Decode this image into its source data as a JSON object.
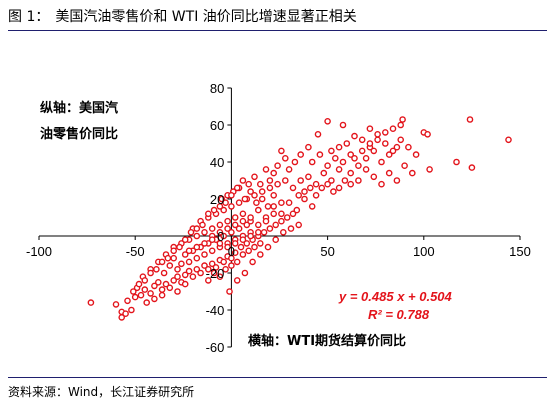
{
  "figure": {
    "title_prefix": "图 1：",
    "title": "美国汽油零售价和 WTI 油价同比增速显著正相关",
    "source": "资料来源：Wind，长江证券研究所"
  },
  "chart_data": {
    "type": "scatter",
    "ylabel_lines": [
      "纵轴：美国汽",
      "油零售价同比"
    ],
    "xlabel": "横轴：WTI期货结算价同比",
    "xlim": [
      -100,
      150
    ],
    "ylim": [
      -60,
      80
    ],
    "xticks": [
      "-100",
      "-50",
      "0",
      "50",
      "100",
      "150"
    ],
    "yticks": [
      "-60",
      "-40",
      "-20",
      "0",
      "20",
      "40",
      "60",
      "80"
    ],
    "xtick_values": [
      -100,
      -50,
      0,
      50,
      100,
      150
    ],
    "ytick_values": [
      -60,
      -40,
      -20,
      0,
      20,
      40,
      60,
      80
    ],
    "trendline": {
      "slope": 0.485,
      "intercept": 0.504
    },
    "equation": "y = 0.485 x + 0.504",
    "r_squared_label": "R² = 0.788",
    "marker_color": "#e3141b",
    "series": [
      {
        "points": [
          [
            -73,
            -36
          ],
          [
            -60,
            -37
          ],
          [
            -57,
            -41
          ],
          [
            -55,
            -42
          ],
          [
            -57,
            -44
          ],
          [
            -52,
            -40
          ],
          [
            -54,
            -35
          ],
          [
            -50,
            -33
          ],
          [
            -47,
            -32
          ],
          [
            -44,
            -36
          ],
          [
            -49,
            -28
          ],
          [
            -45,
            -29
          ],
          [
            -42,
            -31
          ],
          [
            -40,
            -27
          ],
          [
            -38,
            -25
          ],
          [
            -36,
            -29
          ],
          [
            -34,
            -26
          ],
          [
            -30,
            -24
          ],
          [
            -28,
            -22
          ],
          [
            -26,
            -25
          ],
          [
            -24,
            -21
          ],
          [
            -22,
            -19
          ],
          [
            -20,
            -22
          ],
          [
            -18,
            -18
          ],
          [
            -16,
            -20
          ],
          [
            -14,
            -16
          ],
          [
            -12,
            -18
          ],
          [
            -10,
            -15
          ],
          [
            -8,
            -17
          ],
          [
            -6,
            -13
          ],
          [
            -4,
            -14
          ],
          [
            -2,
            -11
          ],
          [
            0,
            -12
          ],
          [
            2,
            -9
          ],
          [
            -46,
            -22
          ],
          [
            -42,
            -18
          ],
          [
            -38,
            -14
          ],
          [
            -35,
            -20
          ],
          [
            -32,
            -16
          ],
          [
            -30,
            -12
          ],
          [
            -28,
            -18
          ],
          [
            -26,
            -15
          ],
          [
            -24,
            -10
          ],
          [
            -22,
            -14
          ],
          [
            -20,
            -8
          ],
          [
            -18,
            -12
          ],
          [
            -16,
            -6
          ],
          [
            -14,
            -10
          ],
          [
            -12,
            -4
          ],
          [
            -10,
            -8
          ],
          [
            -8,
            -2
          ],
          [
            -6,
            -6
          ],
          [
            -4,
            0
          ],
          [
            -2,
            -4
          ],
          [
            0,
            2
          ],
          [
            2,
            -2
          ],
          [
            4,
            4
          ],
          [
            6,
            0
          ],
          [
            8,
            6
          ],
          [
            10,
            2
          ],
          [
            -34,
            -10
          ],
          [
            -30,
            -6
          ],
          [
            -26,
            -4
          ],
          [
            -22,
            -2
          ],
          [
            -18,
            0
          ],
          [
            -14,
            2
          ],
          [
            -10,
            4
          ],
          [
            -6,
            6
          ],
          [
            -2,
            8
          ],
          [
            2,
            10
          ],
          [
            6,
            12
          ],
          [
            10,
            8
          ],
          [
            14,
            14
          ],
          [
            18,
            10
          ],
          [
            22,
            16
          ],
          [
            26,
            12
          ],
          [
            30,
            18
          ],
          [
            34,
            14
          ],
          [
            38,
            20
          ],
          [
            42,
            16
          ],
          [
            -20,
            4
          ],
          [
            -16,
            8
          ],
          [
            -12,
            10
          ],
          [
            -8,
            12
          ],
          [
            -4,
            14
          ],
          [
            0,
            16
          ],
          [
            4,
            18
          ],
          [
            8,
            20
          ],
          [
            12,
            22
          ],
          [
            16,
            24
          ],
          [
            20,
            26
          ],
          [
            24,
            28
          ],
          [
            28,
            30
          ],
          [
            32,
            26
          ],
          [
            36,
            30
          ],
          [
            40,
            32
          ],
          [
            44,
            28
          ],
          [
            48,
            34
          ],
          [
            52,
            30
          ],
          [
            56,
            36
          ],
          [
            -5,
            20
          ],
          [
            -2,
            22
          ],
          [
            1,
            24
          ],
          [
            4,
            26
          ],
          [
            7,
            20
          ],
          [
            10,
            24
          ],
          [
            13,
            18
          ],
          [
            16,
            20
          ],
          [
            19,
            16
          ],
          [
            22,
            22
          ],
          [
            5,
            -6
          ],
          [
            8,
            -4
          ],
          [
            11,
            -2
          ],
          [
            14,
            0
          ],
          [
            17,
            2
          ],
          [
            20,
            4
          ],
          [
            23,
            6
          ],
          [
            26,
            8
          ],
          [
            29,
            10
          ],
          [
            32,
            12
          ],
          [
            -12,
            -24
          ],
          [
            -9,
            -20
          ],
          [
            -6,
            -22
          ],
          [
            -3,
            -18
          ],
          [
            0,
            -16
          ],
          [
            3,
            -14
          ],
          [
            6,
            -10
          ],
          [
            9,
            -8
          ],
          [
            12,
            -6
          ],
          [
            15,
            -4
          ],
          [
            50,
            38
          ],
          [
            54,
            42
          ],
          [
            58,
            40
          ],
          [
            62,
            44
          ],
          [
            66,
            38
          ],
          [
            70,
            42
          ],
          [
            74,
            46
          ],
          [
            78,
            40
          ],
          [
            82,
            44
          ],
          [
            86,
            48
          ],
          [
            60,
            50
          ],
          [
            64,
            54
          ],
          [
            68,
            52
          ],
          [
            72,
            48
          ],
          [
            76,
            52
          ],
          [
            80,
            50
          ],
          [
            84,
            46
          ],
          [
            88,
            52
          ],
          [
            92,
            48
          ],
          [
            96,
            44
          ],
          [
            58,
            60
          ],
          [
            62,
            34
          ],
          [
            66,
            30
          ],
          [
            70,
            36
          ],
          [
            74,
            32
          ],
          [
            78,
            28
          ],
          [
            82,
            34
          ],
          [
            86,
            30
          ],
          [
            90,
            38
          ],
          [
            94,
            34
          ],
          [
            100,
            56
          ],
          [
            102,
            55
          ],
          [
            124,
            63
          ],
          [
            125,
            37
          ],
          [
            144,
            52
          ],
          [
            117,
            40
          ],
          [
            103,
            36
          ],
          [
            89,
            63
          ],
          [
            76,
            55
          ],
          [
            72,
            58
          ],
          [
            45,
            55
          ],
          [
            50,
            62
          ],
          [
            40,
            48
          ],
          [
            36,
            44
          ],
          [
            33,
            40
          ],
          [
            30,
            36
          ],
          [
            28,
            42
          ],
          [
            26,
            46
          ],
          [
            24,
            38
          ],
          [
            22,
            34
          ],
          [
            20,
            30
          ],
          [
            18,
            36
          ],
          [
            15,
            28
          ],
          [
            12,
            32
          ],
          [
            9,
            28
          ],
          [
            6,
            30
          ],
          [
            3,
            26
          ],
          [
            0,
            22
          ],
          [
            -3,
            18
          ],
          [
            -6,
            16
          ],
          [
            -9,
            14
          ],
          [
            -12,
            12
          ],
          [
            -15,
            6
          ],
          [
            -18,
            4
          ],
          [
            -21,
            2
          ],
          [
            -24,
            -2
          ],
          [
            -27,
            -6
          ],
          [
            -30,
            -8
          ],
          [
            -33,
            -12
          ],
          [
            -36,
            -14
          ],
          [
            -39,
            -18
          ],
          [
            -42,
            -20
          ],
          [
            -45,
            -24
          ],
          [
            -48,
            -26
          ],
          [
            -51,
            -30
          ],
          [
            -40,
            -34
          ],
          [
            -36,
            -32
          ],
          [
            -32,
            -28
          ],
          [
            -28,
            -30
          ],
          [
            -24,
            -26
          ],
          [
            35,
            22
          ],
          [
            38,
            24
          ],
          [
            41,
            26
          ],
          [
            44,
            22
          ],
          [
            47,
            26
          ],
          [
            50,
            28
          ],
          [
            53,
            24
          ],
          [
            56,
            26
          ],
          [
            59,
            30
          ],
          [
            62,
            28
          ],
          [
            -1,
            -30
          ],
          [
            3,
            -24
          ],
          [
            7,
            -20
          ],
          [
            11,
            -14
          ],
          [
            15,
            -10
          ],
          [
            19,
            -6
          ],
          [
            23,
            -2
          ],
          [
            27,
            2
          ],
          [
            31,
            4
          ],
          [
            35,
            6
          ],
          [
            42,
            40
          ],
          [
            46,
            44
          ],
          [
            52,
            46
          ],
          [
            56,
            48
          ],
          [
            64,
            42
          ],
          [
            68,
            46
          ],
          [
            72,
            50
          ],
          [
            80,
            56
          ],
          [
            84,
            58
          ],
          [
            88,
            60
          ],
          [
            -10,
            0
          ],
          [
            -6,
            2
          ],
          [
            -2,
            4
          ],
          [
            2,
            6
          ],
          [
            6,
            8
          ],
          [
            10,
            10
          ],
          [
            14,
            6
          ],
          [
            18,
            8
          ],
          [
            22,
            12
          ],
          [
            26,
            18
          ],
          [
            -22,
            -8
          ],
          [
            -18,
            -6
          ],
          [
            -14,
            -4
          ],
          [
            -10,
            -2
          ],
          [
            -6,
            -4
          ],
          [
            -2,
            -6
          ],
          [
            2,
            -4
          ],
          [
            6,
            -2
          ],
          [
            10,
            0
          ],
          [
            14,
            2
          ]
        ]
      }
    ]
  }
}
